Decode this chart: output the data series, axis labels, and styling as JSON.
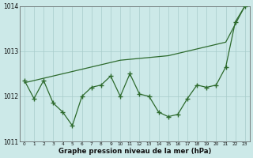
{
  "hours": [
    0,
    1,
    2,
    3,
    4,
    5,
    6,
    7,
    8,
    9,
    10,
    11,
    12,
    13,
    14,
    15,
    16,
    17,
    18,
    19,
    20,
    21,
    22,
    23
  ],
  "line_jagged": [
    1012.35,
    1011.95,
    1012.35,
    1011.85,
    1011.65,
    1011.35,
    1012.0,
    1012.2,
    1012.25,
    1012.45,
    1012.0,
    1012.5,
    1012.05,
    1012.0,
    1011.65,
    1011.55,
    1011.6,
    1011.95,
    1012.25,
    1012.2,
    1012.25,
    1012.65,
    1013.65,
    1014.0
  ],
  "line_trend": [
    1012.3,
    1012.35,
    1012.4,
    1012.45,
    1012.5,
    1012.55,
    1012.6,
    1012.65,
    1012.7,
    1012.75,
    1012.8,
    1012.82,
    1012.84,
    1012.86,
    1012.88,
    1012.9,
    1012.95,
    1013.0,
    1013.05,
    1013.1,
    1013.15,
    1013.2,
    1013.6,
    1014.0
  ],
  "line_color": "#2d6a2d",
  "bg_color": "#cce9e8",
  "grid_color": "#a8ccca",
  "xlabel": "Graphe pression niveau de la mer (hPa)",
  "ylim": [
    1011.0,
    1014.0
  ],
  "xlim": [
    -0.5,
    23.5
  ],
  "yticks": [
    1011,
    1012,
    1013,
    1014
  ],
  "xticks": [
    0,
    1,
    2,
    3,
    4,
    5,
    6,
    7,
    8,
    9,
    10,
    11,
    12,
    13,
    14,
    15,
    16,
    17,
    18,
    19,
    20,
    21,
    22,
    23
  ]
}
